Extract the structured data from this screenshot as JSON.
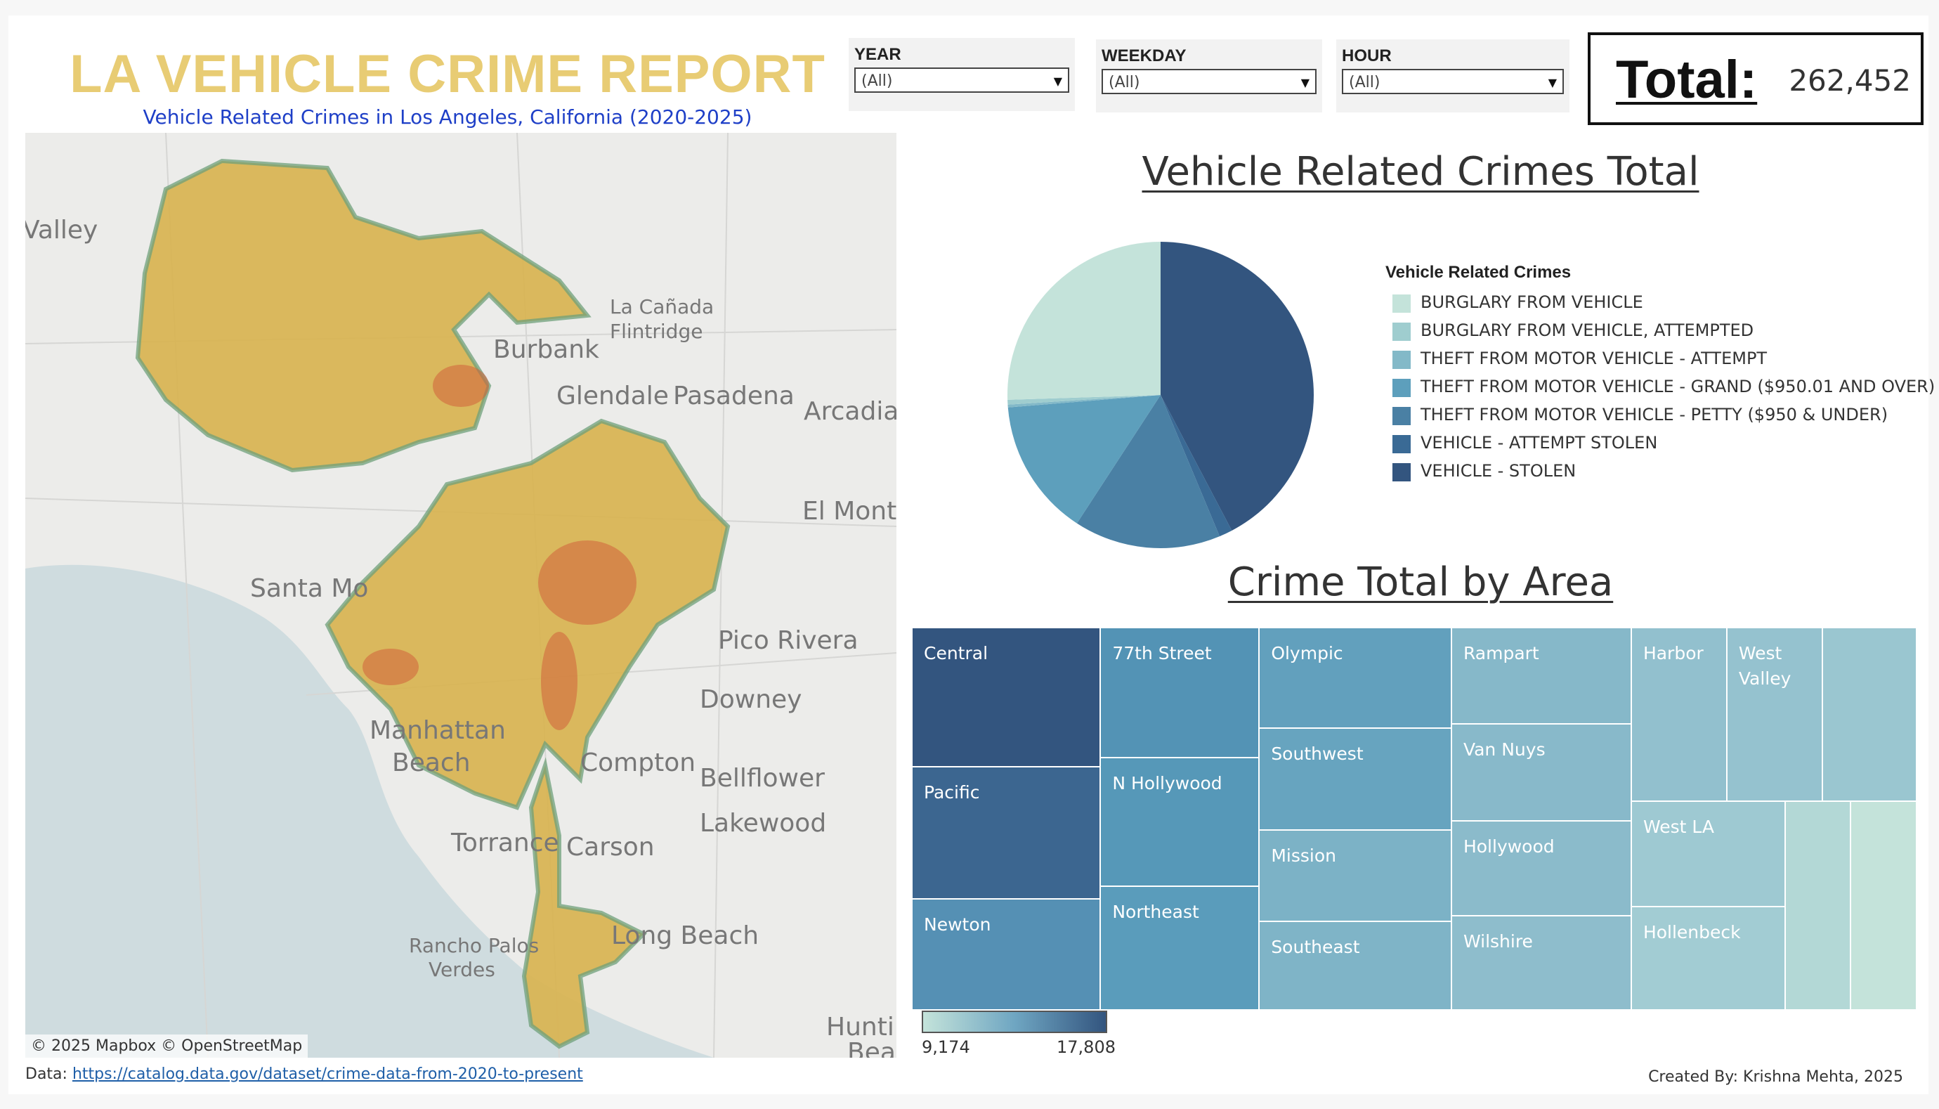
{
  "header": {
    "title": "LA VEHICLE CRIME REPORT",
    "subtitle": "Vehicle Related Crimes in Los Angeles, California (2020-2025)"
  },
  "filters": [
    {
      "label": "YEAR",
      "value": "(All)"
    },
    {
      "label": "WEEKDAY",
      "value": "(All)"
    },
    {
      "label": "HOUR",
      "value": "(All)"
    }
  ],
  "total": {
    "label": "Total:",
    "value": "262,452"
  },
  "map": {
    "place_labels": [
      "Valley",
      "La Cañada",
      "Flintridge",
      "Burbank",
      "Glendale",
      "Pasadena",
      "Arcadia",
      "El Monte",
      "Santa Mo",
      "Pico Rivera",
      "Downey",
      "Manhattan",
      "Beach",
      "Compton",
      "Bellflower",
      "Lakewood",
      "Torrance",
      "Carson",
      "Long Beach",
      "Rancho Palos",
      "Verdes",
      "Huntir",
      "Bea"
    ],
    "attribution": "© 2025 Mapbox  © OpenStreetMap"
  },
  "footer": {
    "data_prefix": "Data: ",
    "data_url": "https://catalog.data.gov/dataset/crime-data-from-2020-to-present",
    "credit": "Created By: Krishna Mehta, 2025"
  },
  "pie": {
    "title": "Vehicle Related Crimes Total",
    "legend_title": "Vehicle Related Crimes",
    "chart_data": {
      "type": "pie",
      "categories": [
        "BURGLARY FROM VEHICLE",
        "BURGLARY FROM VEHICLE, ATTEMPTED",
        "THEFT FROM MOTOR VEHICLE - ATTEMPT",
        "THEFT FROM MOTOR VEHICLE - GRAND ($950.01 AND OVER)",
        "THEFT FROM MOTOR VEHICLE - PETTY ($950 & UNDER)",
        "VEHICLE - ATTEMPT STOLEN",
        "VEHICLE - STOLEN"
      ],
      "values": [
        25.5,
        0.5,
        0.3,
        14.5,
        15.5,
        1.4,
        42.3
      ],
      "colors": [
        "#c4e3da",
        "#9fcdcf",
        "#83b9c8",
        "#5d9fbc",
        "#4a80a4",
        "#3a6a95",
        "#33557f"
      ]
    }
  },
  "treemap": {
    "title": "Crime Total by Area",
    "areas": [
      {
        "name": "Central",
        "color": "#33557f"
      },
      {
        "name": "Pacific",
        "color": "#3c6690"
      },
      {
        "name": "Newton",
        "color": "#5590b4"
      },
      {
        "name": "77th Street",
        "color": "#5393b5"
      },
      {
        "name": "N Hollywood",
        "color": "#5698b8"
      },
      {
        "name": "Northeast",
        "color": "#5a9cbb"
      },
      {
        "name": "Olympic",
        "color": "#62a0bd"
      },
      {
        "name": "Southwest",
        "color": "#67a4bf"
      },
      {
        "name": "Mission",
        "color": "#7cb2c6"
      },
      {
        "name": "Southeast",
        "color": "#7fb4c7"
      },
      {
        "name": "Rampart",
        "color": "#86b8c9"
      },
      {
        "name": "Van Nuys",
        "color": "#88b9ca"
      },
      {
        "name": "Hollywood",
        "color": "#8bbbcb"
      },
      {
        "name": "Wilshire",
        "color": "#8ebdcc"
      },
      {
        "name": "Harbor",
        "color": "#92c0ce"
      },
      {
        "name": "West Valley",
        "color": "#95c2cf"
      },
      {
        "name": "",
        "color": "#9ac6d0"
      },
      {
        "name": "West LA",
        "color": "#9ec9d2"
      },
      {
        "name": "Hollenbeck",
        "color": "#a2ccd3"
      },
      {
        "name": "",
        "color": "#b3d8d6"
      },
      {
        "name": "",
        "color": "#c4e3da"
      }
    ],
    "legend": {
      "min": "9,174",
      "max": "17,808",
      "min_color": "#c4e3da",
      "max_color": "#33557f"
    }
  }
}
